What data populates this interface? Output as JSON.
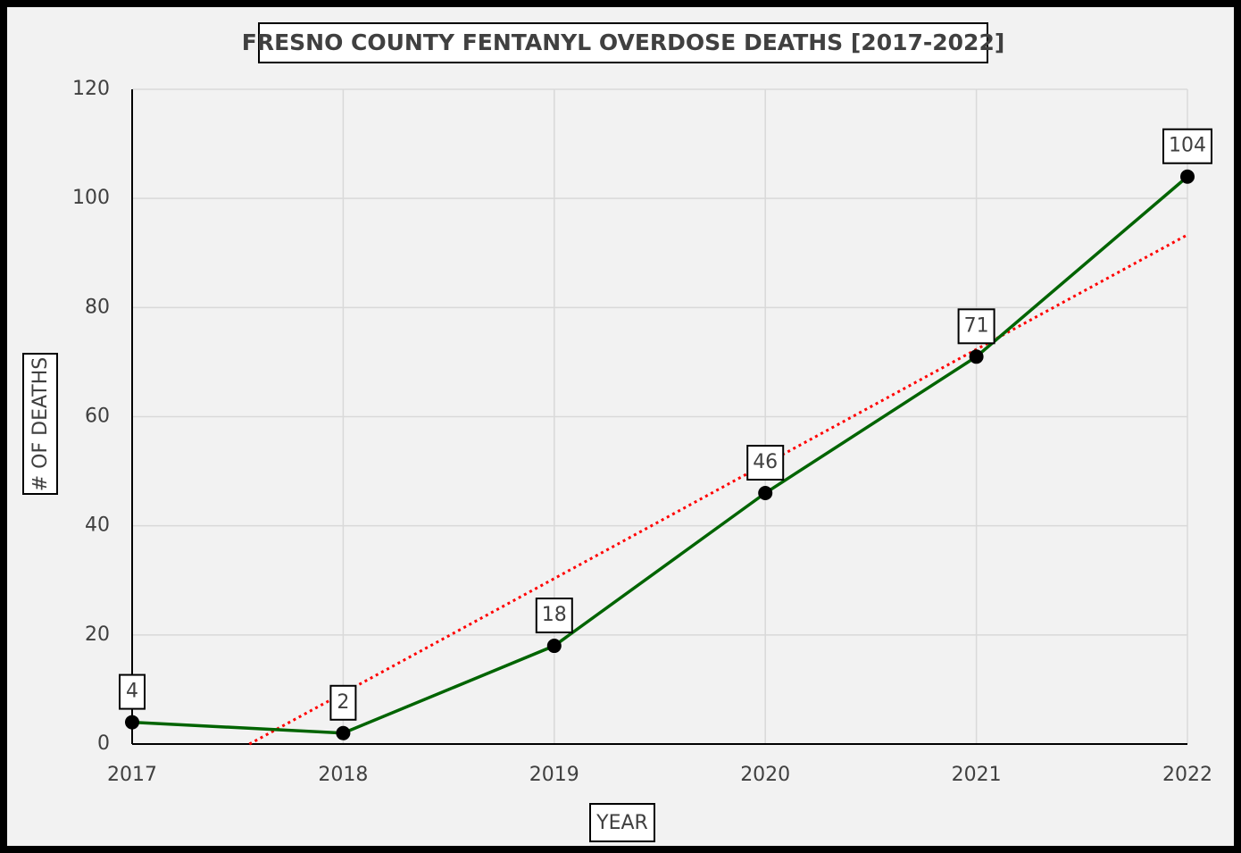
{
  "chart_data": {
    "type": "line",
    "title": "FRESNO COUNTY FENTANYL OVERDOSE DEATHS [2017-2022]",
    "x_label": "YEAR",
    "y_label": "# OF DEATHS",
    "x": [
      2017,
      2018,
      2019,
      2020,
      2021,
      2022
    ],
    "values": [
      4,
      2,
      18,
      46,
      71,
      104
    ],
    "color": "#006400",
    "marker_color": "#000000",
    "trendline": "linear",
    "trendline_color": "#ff0000",
    "xlim": [
      2017,
      2022
    ],
    "xticks": [
      2017,
      2018,
      2019,
      2020,
      2021,
      2022
    ],
    "ylim": [
      0,
      120
    ],
    "yticks": [
      0,
      20,
      40,
      60,
      80,
      100,
      120
    ],
    "grid": true
  }
}
